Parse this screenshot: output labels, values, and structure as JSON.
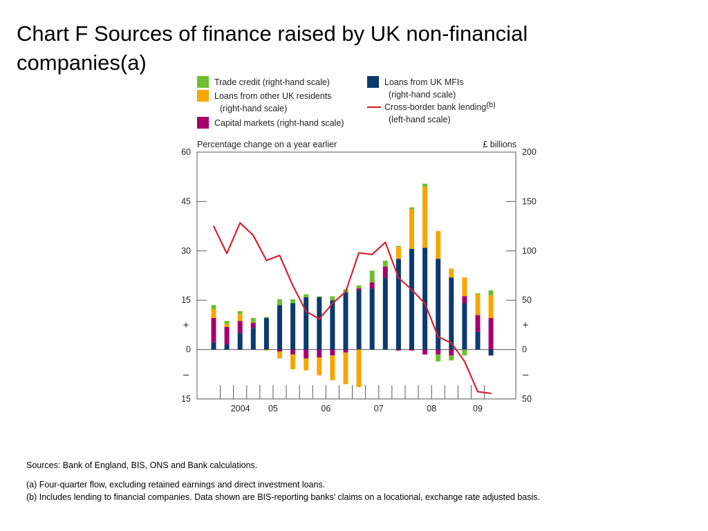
{
  "page": {
    "title_line1": "Chart F  Sources of finance raised by UK non-financial",
    "title_line2": "companies(a)"
  },
  "notes": {
    "sources": "Sources:  Bank of England, BIS, ONS and Bank calculations.",
    "note_a": "(a)  Four-quarter flow, excluding retained earnings and direct investment loans.",
    "note_b": "(b)  Includes lending to financial companies.  Data shown are BIS-reporting banks’ claims on a locational, exchange rate adjusted basis."
  },
  "colors": {
    "trade_credit": "#6cbf2e",
    "loans_other": "#f7a600",
    "capital_markets": "#a5006b",
    "loans_mfi": "#0b3a70",
    "cross_border": "#d4232e"
  },
  "chart_data": {
    "type": "bar",
    "stacked": true,
    "left_axis_title": "Percentage change on a year earlier",
    "right_axis_title": "£ billions",
    "left_axis": {
      "ylim": [
        -15,
        60
      ],
      "ticks": [
        {
          "value": 60,
          "label": "60"
        },
        {
          "value": 45,
          "label": "45"
        },
        {
          "value": 30,
          "label": "30"
        },
        {
          "value": 15,
          "label": "15"
        },
        {
          "value": 0,
          "label": "0"
        },
        {
          "value": -15,
          "label": "15"
        }
      ]
    },
    "right_axis": {
      "ylim": [
        -50,
        200
      ],
      "ticks": [
        {
          "value": 200,
          "label": "200"
        },
        {
          "value": 150,
          "label": "150"
        },
        {
          "value": 100,
          "label": "100"
        },
        {
          "value": 50,
          "label": "50"
        },
        {
          "value": 0,
          "label": "0"
        },
        {
          "value": -50,
          "label": "50"
        }
      ]
    },
    "plus_sign": "+",
    "minus_sign": "–",
    "x_labels": [
      "2004",
      "05",
      "06",
      "07",
      "08",
      "09"
    ],
    "legend": [
      {
        "key": "trade_credit",
        "label_lines": [
          "Trade credit (right-hand scale)"
        ],
        "kind": "box"
      },
      {
        "key": "loans_other",
        "label_lines": [
          "Loans from other UK residents",
          "(right-hand scale)"
        ],
        "kind": "box"
      },
      {
        "key": "capital_markets",
        "label_lines": [
          "Capital markets (right-hand scale)"
        ],
        "kind": "box"
      },
      {
        "key": "loans_mfi",
        "label_lines": [
          "Loans from UK MFIs",
          "(right-hand scale)"
        ],
        "kind": "box"
      },
      {
        "key": "cross_border",
        "label_lines": [
          "Cross-border bank lending",
          "(left-hand scale)"
        ],
        "kind": "line",
        "superscript": "(b)"
      }
    ],
    "bar_series": [
      {
        "name": "Loans from UK MFIs",
        "key": "loans_mfi",
        "values": [
          7,
          5,
          17,
          22,
          32,
          45,
          47,
          53,
          53,
          50,
          58,
          60,
          62,
          73,
          92,
          102,
          103,
          92,
          73,
          47,
          18,
          -6
        ]
      },
      {
        "name": "Capital markets",
        "key": "capital_markets",
        "values": [
          25,
          18,
          12,
          5,
          0,
          -2,
          -5,
          -9,
          -8,
          -6,
          -3,
          2,
          6,
          11,
          -1,
          -1,
          -5,
          -5,
          -6,
          7,
          17,
          32
        ]
      },
      {
        "name": "Loans from other UK residents",
        "key": "loans_other",
        "values": [
          9,
          3,
          7,
          0,
          -1,
          -7,
          -15,
          -12,
          -18,
          -25,
          -32,
          -38,
          0,
          0,
          12,
          40,
          62,
          28,
          9,
          19,
          21,
          23
        ]
      },
      {
        "name": "Trade credit",
        "key": "trade_credit",
        "values": [
          4,
          3,
          3,
          5,
          1,
          6,
          4,
          3,
          1,
          4,
          3,
          3,
          12,
          6,
          1,
          2,
          3,
          -7,
          -5,
          -6,
          1,
          5
        ]
      }
    ],
    "line_series": {
      "name": "Cross-border bank lending",
      "axis": "left",
      "x": [
        0,
        1,
        2,
        3,
        4,
        5,
        6,
        7,
        8,
        9,
        10,
        11,
        12,
        13,
        14,
        15,
        16,
        17,
        18,
        19,
        20,
        21
      ],
      "values": [
        37.5,
        29.2,
        38.5,
        34.7,
        27.1,
        28.6,
        19.4,
        11.6,
        9.3,
        14.0,
        17.6,
        29.4,
        28.9,
        32.6,
        21.8,
        18.2,
        14.0,
        3.9,
        2.0,
        -3.6,
        -12.8,
        -13.3
      ]
    }
  }
}
